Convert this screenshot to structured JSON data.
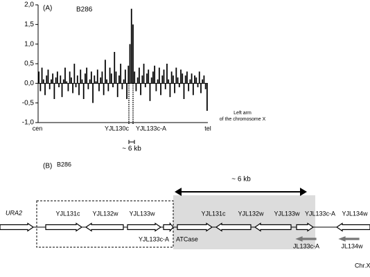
{
  "chart_data": {
    "type": "bar",
    "panel_label": "(A)",
    "title": "B286",
    "values": [
      0.3,
      -0.2,
      0.4,
      0.1,
      -0.3,
      0.2,
      0.35,
      -0.15,
      0.1,
      0.25,
      -0.4,
      0.15,
      0.3,
      -0.1,
      0.2,
      -0.35,
      0.1,
      0.4,
      0.05,
      -0.2,
      0.3,
      0.15,
      -0.25,
      0.5,
      -0.1,
      0.2,
      -0.3,
      0.35,
      0.1,
      -0.4,
      0.25,
      0.4,
      -0.15,
      0.1,
      0.3,
      -0.5,
      0.2,
      0.05,
      0.35,
      -0.2,
      0.15,
      0.3,
      -0.3,
      0.6,
      0.1,
      -0.2,
      0.4,
      0.25,
      -0.1,
      0.8,
      0.3,
      -0.35,
      0.2,
      0.5,
      -0.15,
      0.1,
      0.35,
      -0.4,
      0.45,
      1.0,
      1.9,
      1.5,
      0.3,
      -0.2,
      0.15,
      0.4,
      -0.3,
      0.2,
      0.5,
      -0.1,
      0.25,
      0.35,
      -0.45,
      0.15,
      0.3,
      0.45,
      -0.2,
      0.1,
      0.4,
      -0.3,
      0.2,
      0.35,
      -0.15,
      0.5,
      0.1,
      -0.35,
      0.3,
      0.2,
      -0.25,
      0.4,
      0.15,
      -0.1,
      0.35,
      0.25,
      -0.4,
      0.2,
      0.3,
      -0.2,
      0.1,
      0.25,
      -0.3,
      0.2,
      0.15,
      -0.1,
      0.3,
      -0.25,
      0.1,
      0.2,
      -0.15,
      -0.7
    ],
    "color": "#000000",
    "ylim": [
      -1,
      2
    ],
    "yticks": [
      {
        "value": -1,
        "label": "-1,0"
      },
      {
        "value": -0.5,
        "label": "-0,5"
      },
      {
        "value": 0,
        "label": "0,0"
      },
      {
        "value": 0.5,
        "label": "0,5"
      },
      {
        "value": 1,
        "label": "1,0"
      },
      {
        "value": 1.5,
        "label": "1,5"
      },
      {
        "value": 2,
        "label": "2,0"
      }
    ],
    "x_labels": [
      "cen",
      "YJL130c",
      "YJL133c-A",
      "tel"
    ],
    "axis_note": [
      "Left arm",
      "of the chromosome X"
    ],
    "scale_label": "~ 6 kb"
  },
  "diagram": {
    "panel_label": "(B)",
    "title": "B286",
    "scale_label": "~ 6 kb",
    "locus": "URA2",
    "genes_top": [
      "YJL131c",
      "YJL132w",
      "YJL133w",
      "YJL131c",
      "YJL132w",
      "YJL133w",
      "YJL133c-A",
      "YJL134w"
    ],
    "genes_bottom": [
      "YJL133c-A",
      "ATCase",
      "JL133c-A",
      "JL134w"
    ],
    "chromosome": "Chr.X"
  }
}
